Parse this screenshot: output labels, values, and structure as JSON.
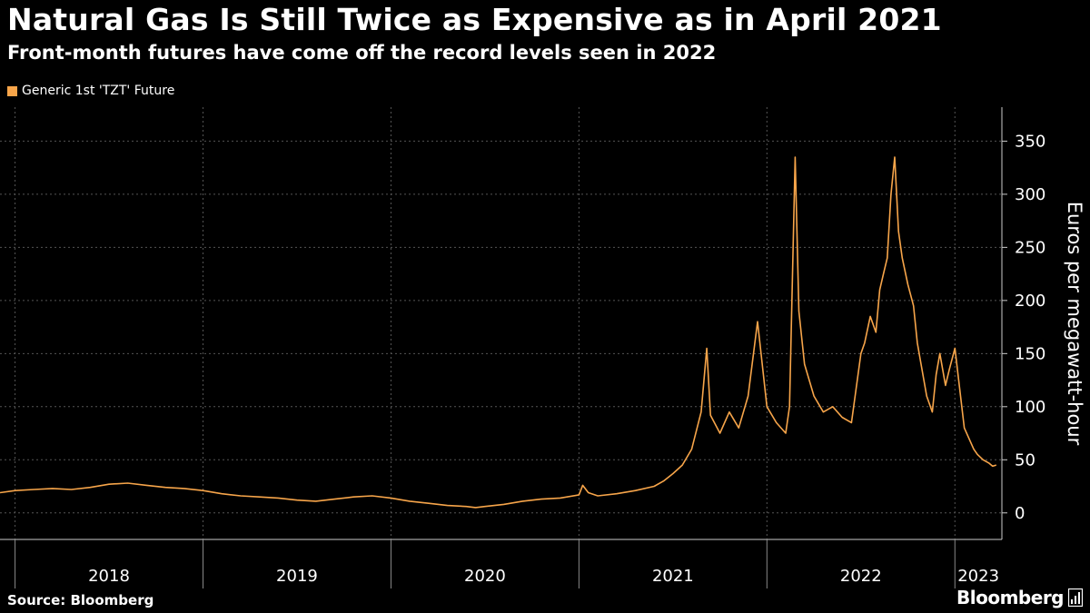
{
  "title": "Natural Gas Is Still Twice as Expensive as in April 2021",
  "subtitle": "Front-month futures have come off the record levels seen in 2022",
  "legend": {
    "label": "Generic 1st 'TZT' Future",
    "color": "#f7a54a"
  },
  "source": "Source: Bloomberg",
  "brand": "Bloomberg",
  "colors": {
    "background": "#000000",
    "series": "#f7a54a",
    "grid": "#555555",
    "text": "#ffffff"
  },
  "chart_data": {
    "type": "line",
    "title": "Natural Gas Is Still Twice as Expensive as in April 2021",
    "xlabel": "",
    "ylabel": "Euros per megawatt-hour",
    "ylim": [
      -25,
      380
    ],
    "xlim": [
      2017.92,
      2023.25
    ],
    "yticks": [
      0,
      50,
      100,
      150,
      200,
      250,
      300,
      350
    ],
    "year_labels": [
      "2018",
      "2019",
      "2020",
      "2021",
      "2022",
      "2023"
    ],
    "year_starts": [
      2018,
      2019,
      2020,
      2021,
      2022,
      2023
    ],
    "grid": true,
    "series": [
      {
        "name": "Generic 1st 'TZT' Future",
        "x": [
          2017.92,
          2018.0,
          2018.1,
          2018.2,
          2018.3,
          2018.4,
          2018.5,
          2018.6,
          2018.7,
          2018.8,
          2018.9,
          2019.0,
          2019.1,
          2019.2,
          2019.3,
          2019.4,
          2019.5,
          2019.6,
          2019.7,
          2019.8,
          2019.9,
          2020.0,
          2020.1,
          2020.2,
          2020.3,
          2020.4,
          2020.45,
          2020.5,
          2020.6,
          2020.7,
          2020.8,
          2020.9,
          2021.0,
          2021.02,
          2021.05,
          2021.1,
          2021.2,
          2021.3,
          2021.4,
          2021.45,
          2021.5,
          2021.55,
          2021.6,
          2021.65,
          2021.68,
          2021.7,
          2021.75,
          2021.8,
          2021.85,
          2021.9,
          2021.95,
          2022.0,
          2022.05,
          2022.1,
          2022.12,
          2022.15,
          2022.17,
          2022.2,
          2022.25,
          2022.3,
          2022.35,
          2022.4,
          2022.45,
          2022.5,
          2022.52,
          2022.55,
          2022.58,
          2022.6,
          2022.62,
          2022.64,
          2022.66,
          2022.68,
          2022.7,
          2022.72,
          2022.75,
          2022.78,
          2022.8,
          2022.82,
          2022.85,
          2022.88,
          2022.9,
          2022.92,
          2022.95,
          2022.97,
          2023.0,
          2023.05,
          2023.1,
          2023.12,
          2023.15,
          2023.18,
          2023.2,
          2023.22
        ],
        "values": [
          19,
          21,
          22,
          23,
          22,
          24,
          27,
          28,
          26,
          24,
          23,
          21,
          18,
          16,
          15,
          14,
          12,
          11,
          13,
          15,
          16,
          14,
          11,
          9,
          7,
          6,
          5,
          6,
          8,
          11,
          13,
          14,
          17,
          26,
          19,
          16,
          18,
          21,
          25,
          30,
          37,
          45,
          60,
          95,
          155,
          92,
          75,
          95,
          80,
          110,
          180,
          100,
          85,
          75,
          100,
          335,
          190,
          140,
          110,
          95,
          100,
          90,
          85,
          150,
          160,
          185,
          170,
          210,
          225,
          240,
          300,
          335,
          265,
          240,
          215,
          195,
          160,
          140,
          110,
          95,
          130,
          150,
          120,
          135,
          155,
          80,
          60,
          55,
          50,
          47,
          44,
          45
        ]
      }
    ]
  }
}
